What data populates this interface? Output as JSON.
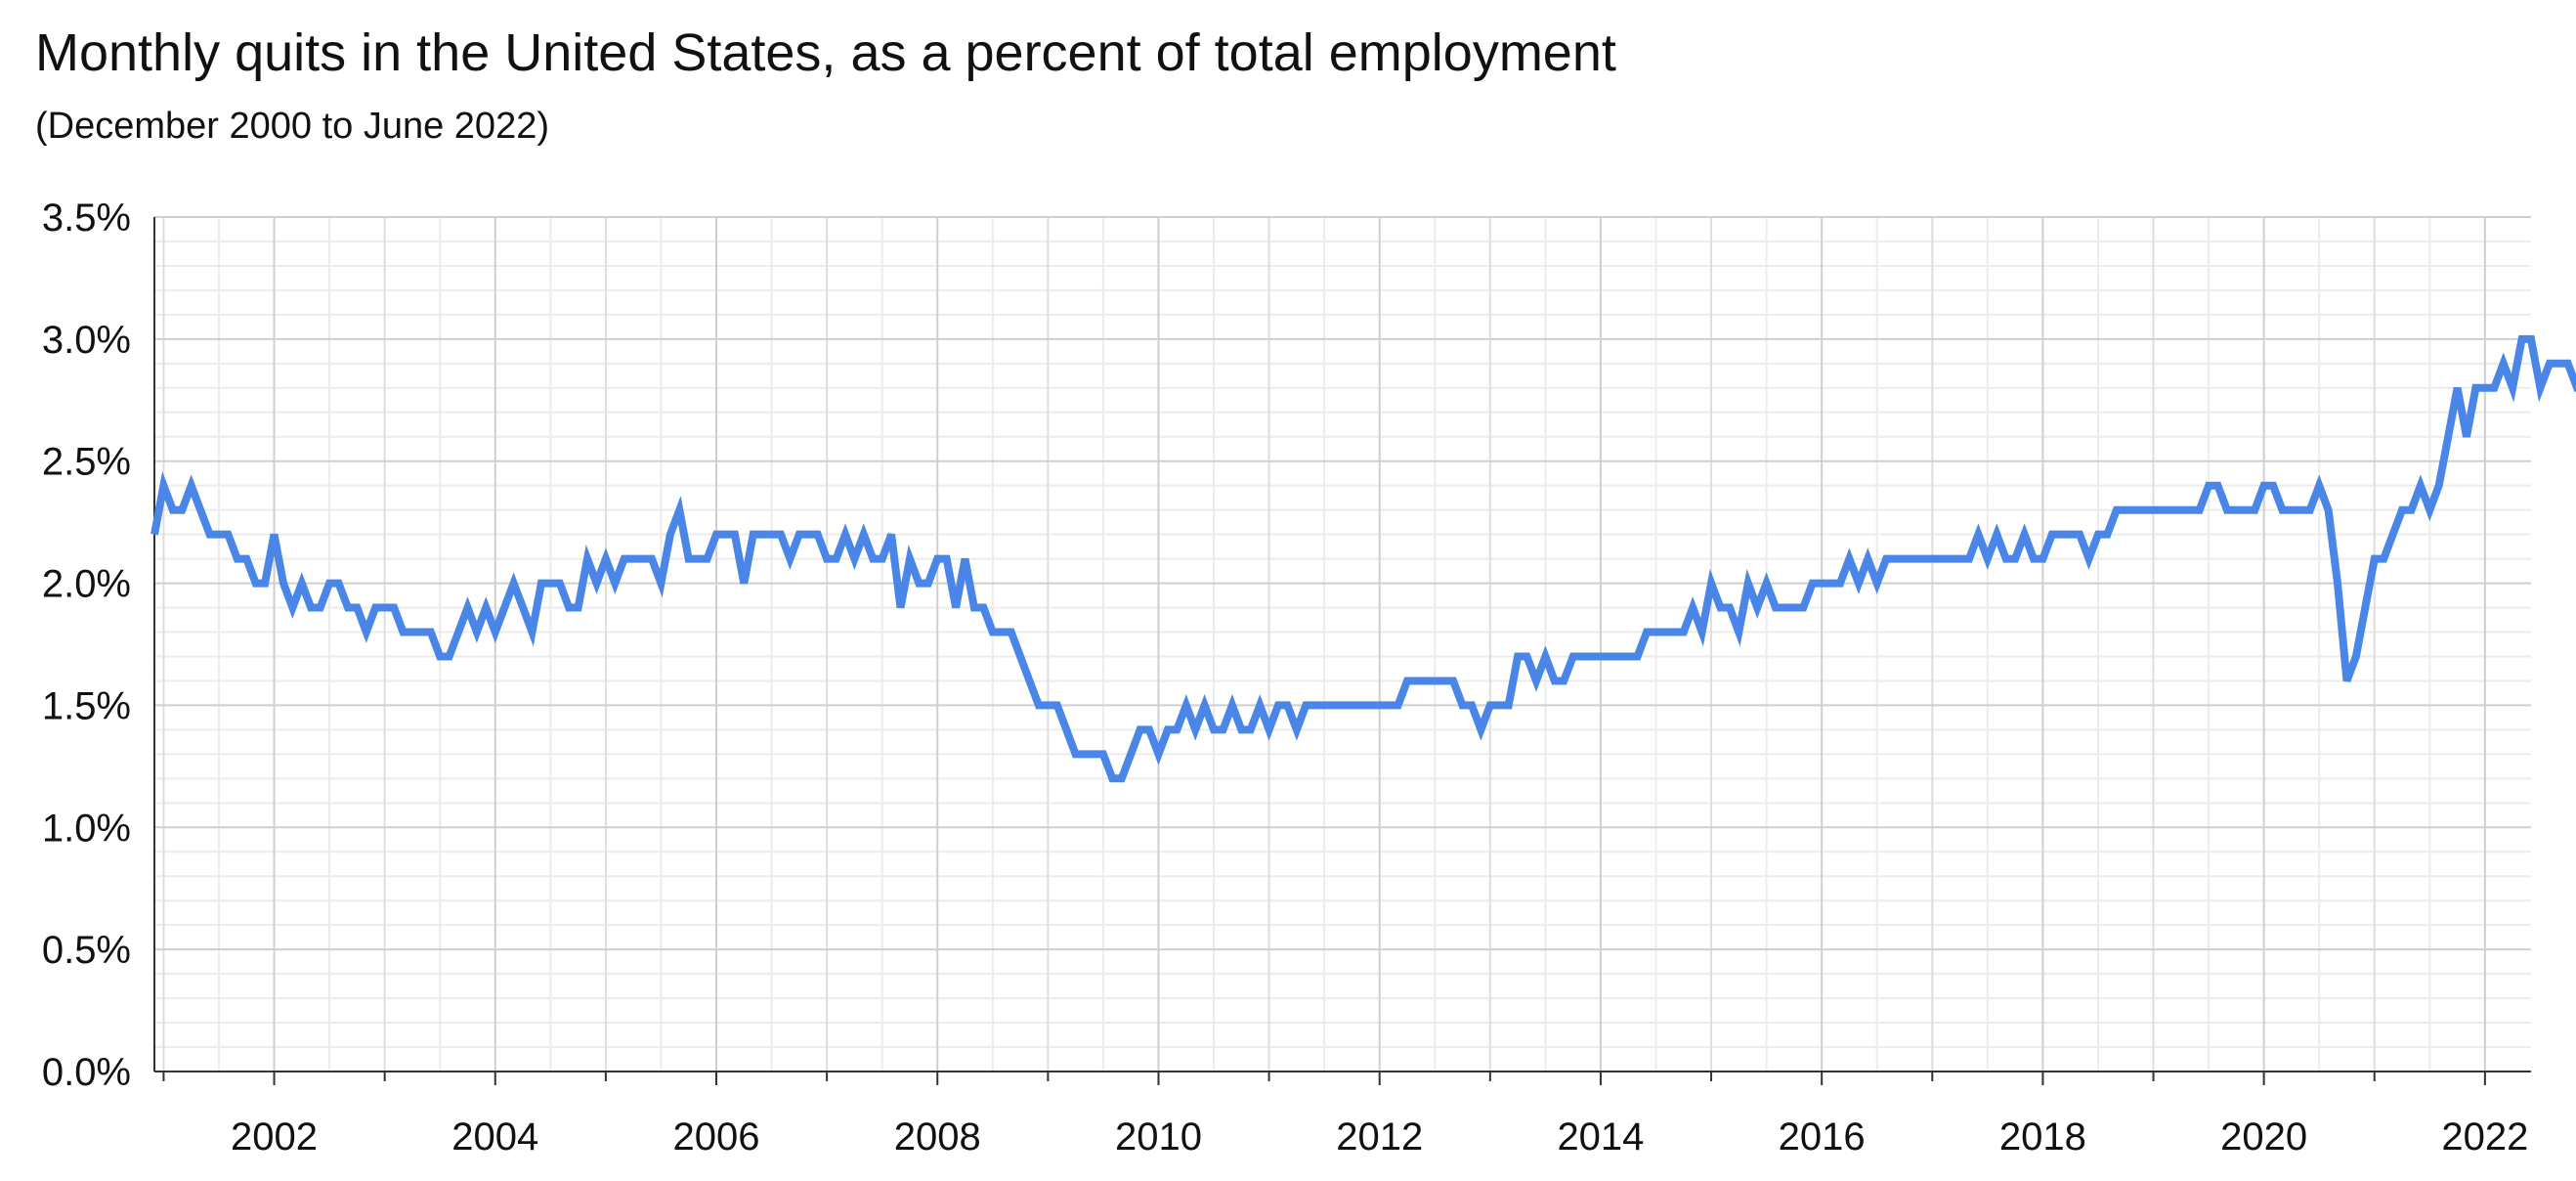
{
  "chart_data": {
    "type": "line",
    "title": "Monthly quits in the United States, as a percent of total employment",
    "subtitle": "(December 2000 to June 2022)",
    "xlabel": "",
    "ylabel": "",
    "x_start": "2000-12",
    "x_end": "2022-06",
    "xlim": [
      "2000-12",
      "2022-06"
    ],
    "x_ticks": [
      "2002",
      "2004",
      "2006",
      "2008",
      "2010",
      "2012",
      "2014",
      "2016",
      "2018",
      "2020",
      "2022"
    ],
    "ylim": [
      0,
      3.5
    ],
    "y_ticks": [
      "0.0%",
      "0.5%",
      "1.0%",
      "1.5%",
      "2.0%",
      "2.5%",
      "3.0%",
      "3.5%"
    ],
    "grid": true,
    "legend": "none",
    "series": [
      {
        "color": "#4a86e8",
        "values": [
          2.2,
          2.4,
          2.3,
          2.3,
          2.4,
          2.3,
          2.2,
          2.2,
          2.2,
          2.1,
          2.1,
          2.0,
          2.0,
          2.2,
          2.0,
          1.9,
          2.0,
          1.9,
          1.9,
          2.0,
          2.0,
          1.9,
          1.9,
          1.8,
          1.9,
          1.9,
          1.9,
          1.8,
          1.8,
          1.8,
          1.8,
          1.7,
          1.7,
          1.8,
          1.9,
          1.8,
          1.9,
          1.8,
          1.9,
          2.0,
          1.9,
          1.8,
          2.0,
          2.0,
          2.0,
          1.9,
          1.9,
          2.1,
          2.0,
          2.1,
          2.0,
          2.1,
          2.1,
          2.1,
          2.1,
          2.0,
          2.2,
          2.3,
          2.1,
          2.1,
          2.1,
          2.2,
          2.2,
          2.2,
          2.0,
          2.2,
          2.2,
          2.2,
          2.2,
          2.1,
          2.2,
          2.2,
          2.2,
          2.1,
          2.1,
          2.2,
          2.1,
          2.2,
          2.1,
          2.1,
          2.2,
          1.9,
          2.1,
          2.0,
          2.0,
          2.1,
          2.1,
          1.9,
          2.1,
          1.9,
          1.9,
          1.8,
          1.8,
          1.8,
          1.7,
          1.6,
          1.5,
          1.5,
          1.5,
          1.4,
          1.3,
          1.3,
          1.3,
          1.3,
          1.2,
          1.2,
          1.3,
          1.4,
          1.4,
          1.3,
          1.4,
          1.4,
          1.5,
          1.4,
          1.5,
          1.4,
          1.4,
          1.5,
          1.4,
          1.4,
          1.5,
          1.4,
          1.5,
          1.5,
          1.4,
          1.5,
          1.5,
          1.5,
          1.5,
          1.5,
          1.5,
          1.5,
          1.5,
          1.5,
          1.5,
          1.5,
          1.6,
          1.6,
          1.6,
          1.6,
          1.6,
          1.6,
          1.5,
          1.5,
          1.4,
          1.5,
          1.5,
          1.5,
          1.7,
          1.7,
          1.6,
          1.7,
          1.6,
          1.6,
          1.7,
          1.7,
          1.7,
          1.7,
          1.7,
          1.7,
          1.7,
          1.7,
          1.8,
          1.8,
          1.8,
          1.8,
          1.8,
          1.9,
          1.8,
          2.0,
          1.9,
          1.9,
          1.8,
          2.0,
          1.9,
          2.0,
          1.9,
          1.9,
          1.9,
          1.9,
          2.0,
          2.0,
          2.0,
          2.0,
          2.1,
          2.0,
          2.1,
          2.0,
          2.1,
          2.1,
          2.1,
          2.1,
          2.1,
          2.1,
          2.1,
          2.1,
          2.1,
          2.1,
          2.2,
          2.1,
          2.2,
          2.1,
          2.1,
          2.2,
          2.1,
          2.1,
          2.2,
          2.2,
          2.2,
          2.2,
          2.1,
          2.2,
          2.2,
          2.3,
          2.3,
          2.3,
          2.3,
          2.3,
          2.3,
          2.3,
          2.3,
          2.3,
          2.3,
          2.4,
          2.4,
          2.3,
          2.3,
          2.3,
          2.3,
          2.4,
          2.4,
          2.3,
          2.3,
          2.3,
          2.3,
          2.4,
          2.3,
          2.0,
          1.6,
          1.7,
          1.9,
          2.1,
          2.1,
          2.2,
          2.3,
          2.3,
          2.4,
          2.3,
          2.4,
          2.6,
          2.8,
          2.6,
          2.8,
          2.8,
          2.8,
          2.9,
          2.8,
          3.0,
          3.0,
          2.8,
          2.9,
          2.9,
          2.9,
          2.8,
          2.8
        ]
      }
    ]
  }
}
